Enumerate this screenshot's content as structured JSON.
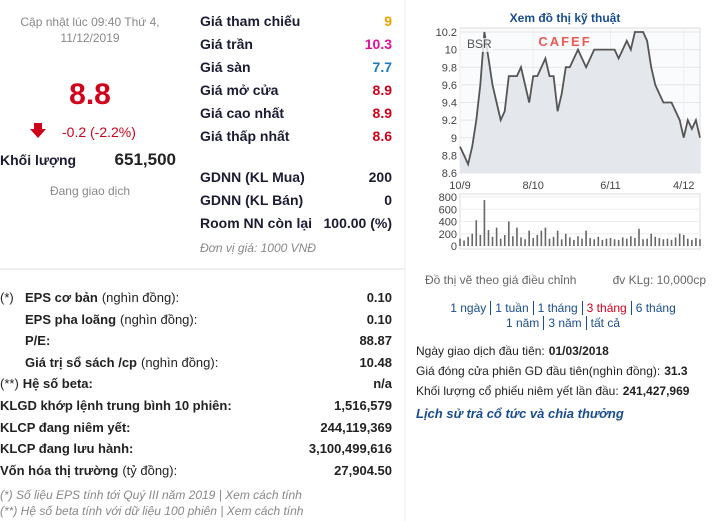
{
  "quote": {
    "updated": [
      "Cập nhật lúc 09:40 Thứ 4,",
      "11/12/2019"
    ],
    "price": "8.8",
    "change": "-0.2 (-2.2%)",
    "volume_label": "Khối lượng",
    "volume": "651,500",
    "status": "Đang giao dịch"
  },
  "prices": [
    {
      "label": "Giá tham chiếu",
      "value": "9",
      "color": "#f0a000"
    },
    {
      "label": "Giá trần",
      "value": "10.3",
      "color": "#e0109b"
    },
    {
      "label": "Giá sàn",
      "value": "7.7",
      "color": "#1a7abf"
    },
    {
      "label": "Giá mở cửa",
      "value": "8.9",
      "color": "#d0021b"
    },
    {
      "label": "Giá cao nhất",
      "value": "8.9",
      "color": "#d0021b"
    },
    {
      "label": "Giá thấp nhất",
      "value": "8.6",
      "color": "#d0021b"
    }
  ],
  "foreign": [
    {
      "label": "GDNN (KL Mua)",
      "value": "200"
    },
    {
      "label": "GDNN (KL Bán)",
      "value": "0"
    },
    {
      "label": "Room NN còn lại",
      "value": "100.00 (%)"
    }
  ],
  "unit_note": "Đơn vị giá: 1000 VNĐ",
  "fundamentals": [
    {
      "marker": "(*)",
      "label": "EPS cơ bản",
      "unit": "(nghìn đồng):",
      "value": "0.10"
    },
    {
      "label": "EPS pha loãng",
      "unit": "(nghìn đồng):",
      "value": "0.10"
    },
    {
      "label": "P/E:",
      "value": "88.87"
    },
    {
      "label": "Giá trị sổ sách /cp",
      "unit": "(nghìn đồng):",
      "value": "10.48"
    },
    {
      "marker": "(**)",
      "label": "Hệ số beta:",
      "value": "n/a"
    },
    {
      "label": "KLGD khớp lệnh trung bình 10 phiên:",
      "value": "1,516,579"
    },
    {
      "label": "KLCP đang niêm yết:",
      "value": "244,119,369"
    },
    {
      "label": "KLCP đang lưu hành:",
      "value": "3,100,499,616"
    },
    {
      "label": "Vốn hóa thị trường",
      "unit": "(tỷ đồng):",
      "value": "27,904.50"
    }
  ],
  "footnotes": [
    "(*) Số liệu EPS tính tới Quý III năm 2019 | Xem cách tính",
    "(**) Hệ số beta tính với dữ liệu 100 phiên | Xem cách tính"
  ],
  "chart_data": {
    "type": "line",
    "title": "Xem đồ thị kỹ thuật",
    "symbol": "BSR",
    "watermark": "CAFEF",
    "color": "#555555",
    "area_color": "#e4e7ec",
    "values": [
      8.9,
      8.8,
      8.7,
      8.9,
      9.2,
      9.6,
      10.2,
      9.9,
      9.6,
      9.4,
      9.2,
      9.3,
      9.7,
      9.7,
      9.7,
      9.8,
      9.6,
      9.4,
      9.7,
      9.7,
      9.8,
      9.9,
      9.7,
      9.7,
      9.3,
      9.5,
      9.8,
      9.8,
      9.9,
      10.0,
      9.9,
      9.8,
      9.9,
      10.0,
      10.0,
      10.0,
      10.0,
      10.0,
      10.0,
      9.9,
      10.0,
      10.1,
      10.0,
      10.2,
      10.2,
      10.2,
      10.1,
      9.8,
      9.6,
      9.5,
      9.4,
      9.4,
      9.4,
      9.3,
      9.2,
      9.0,
      9.2,
      9.1,
      9.2,
      9.0
    ],
    "xlim": [
      0,
      59
    ],
    "xticks": [
      {
        "value": 0,
        "label": "10/9"
      },
      {
        "value": 18,
        "label": "8/10"
      },
      {
        "value": 37,
        "label": "6/11"
      },
      {
        "value": 55,
        "label": "4/12"
      }
    ],
    "ylim": [
      8.6,
      10.2
    ],
    "yticks": [
      {
        "value": 10.2,
        "label": "10.2"
      },
      10,
      9.8,
      9.6,
      9.4,
      9.2,
      9,
      8.8,
      8.6
    ],
    "grid": true,
    "volume": {
      "color": "#666666",
      "values": [
        120,
        90,
        150,
        200,
        420,
        180,
        750,
        260,
        150,
        300,
        120,
        180,
        400,
        160,
        300,
        140,
        110,
        250,
        130,
        180,
        250,
        300,
        120,
        150,
        250,
        110,
        200,
        140,
        100,
        160,
        120,
        250,
        130,
        110,
        150,
        100,
        120,
        130,
        110,
        100,
        140,
        120,
        160,
        130,
        280,
        110,
        120,
        200,
        150,
        130,
        110,
        120,
        100,
        140,
        200,
        180,
        120,
        100,
        130,
        110
      ],
      "ylim": [
        0,
        800
      ],
      "yticks": [
        800,
        600,
        400,
        200,
        0
      ]
    },
    "note": "Đồ thị vẽ theo giá điều chỉnh",
    "unit": "đv KLg: 10,000cp"
  },
  "ranges": [
    [
      "1 ngày",
      "1 tuần",
      "1 tháng",
      "3 tháng",
      "6 tháng"
    ],
    [
      "1 năm",
      "3 năm",
      "tất cả"
    ]
  ],
  "active_range": "3 tháng",
  "listing": [
    {
      "label": "Ngày giao dịch đầu tiên:",
      "value": "01/03/2018"
    },
    {
      "label": "Giá đóng cửa phiên GD đầu tiên(nghìn đồng):",
      "value": "31.3"
    },
    {
      "label": "Khối lượng cổ phiếu niêm yết lần đầu:",
      "value": "241,427,969"
    }
  ],
  "dividend_link": "Lịch sử trả cổ tức và chia thưởng"
}
